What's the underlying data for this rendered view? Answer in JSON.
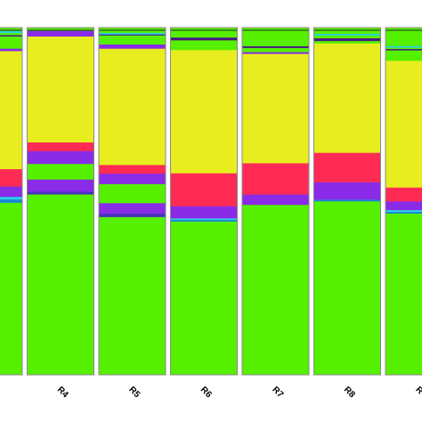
{
  "chart_data": {
    "type": "bar",
    "stacked": true,
    "orientation": "vertical",
    "categories": [
      "",
      "R4",
      "R5",
      "R6",
      "R7",
      "R8",
      "R"
    ],
    "ylim": [
      0,
      1
    ],
    "grid": false,
    "legend": "none",
    "series": [
      {
        "color": "#55f000",
        "values": [
          0.496,
          0.52,
          0.455,
          0.442,
          0.49,
          0.5,
          0.465
        ]
      },
      {
        "color": "#1a8ad4",
        "values": [
          0.01,
          0.0,
          0.0,
          0.005,
          0.0,
          0.005,
          0.005
        ]
      },
      {
        "color": "#2ad2e6",
        "values": [
          0.007,
          0.0,
          0.0,
          0.004,
          0.0,
          0.0,
          0.005
        ]
      },
      {
        "color": "#4a30c0",
        "values": [
          0.0,
          0.008,
          0.01,
          0.0,
          0.0,
          0.0,
          0.0
        ]
      },
      {
        "color": "#8a2be8",
        "values": [
          0.03,
          0.035,
          0.03,
          0.035,
          0.03,
          0.05,
          0.025
        ]
      },
      {
        "color": "#55f000",
        "values": [
          0.0,
          0.045,
          0.055,
          0.0,
          0.0,
          0.0,
          0.0
        ]
      },
      {
        "color": "#8a2be8",
        "values": [
          0.0,
          0.037,
          0.03,
          0.0,
          0.0,
          0.0,
          0.0
        ]
      },
      {
        "color": "#ff2b55",
        "values": [
          0.05,
          0.025,
          0.025,
          0.095,
          0.09,
          0.085,
          0.04
        ]
      },
      {
        "color": "#e8ed20",
        "values": [
          0.34,
          0.305,
          0.335,
          0.355,
          0.315,
          0.315,
          0.365
        ]
      },
      {
        "color": "#8a2be8",
        "values": [
          0.007,
          0.018,
          0.012,
          0.0,
          0.005,
          0.0,
          0.0
        ]
      },
      {
        "color": "#55f000",
        "values": [
          0.035,
          0.007,
          0.026,
          0.028,
          0.012,
          0.007,
          0.03
        ]
      },
      {
        "color": "#4a1a80",
        "values": [
          0.004,
          0.0,
          0.003,
          0.008,
          0.005,
          0.008,
          0.004
        ]
      },
      {
        "color": "#55f000",
        "values": [
          0.006,
          0.0,
          0.0,
          0.005,
          0.005,
          0.008,
          0.004
        ]
      },
      {
        "color": "#2ad2e6",
        "values": [
          0.005,
          0.0,
          0.004,
          0.0,
          0.0,
          0.004,
          0.004
        ]
      }
    ]
  }
}
